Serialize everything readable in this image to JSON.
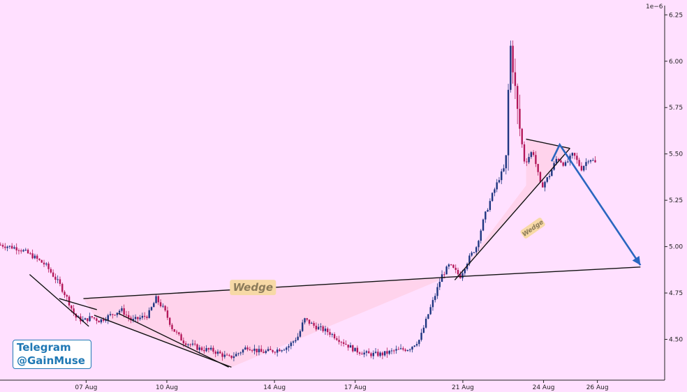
{
  "watermark": {
    "line1": "Telegram",
    "line2": "@GainMuse"
  },
  "chart_data": {
    "type": "candlestick",
    "y_multiplier_label": "1e−6",
    "x_tick_labels": [
      "07 Aug",
      "10 Aug",
      "14 Aug",
      "17 Aug",
      "21 Aug",
      "24 Aug",
      "26 Aug"
    ],
    "x_tick_days": [
      7,
      10,
      14,
      17,
      21,
      24,
      26
    ],
    "x_range_days": [
      3.8,
      28.5
    ],
    "y_tick_labels": [
      "4.50",
      "4.75",
      "5.00",
      "5.25",
      "5.50",
      "5.75",
      "6.00",
      "6.25"
    ],
    "y_ticks": [
      4.5,
      4.75,
      5.0,
      5.25,
      5.5,
      5.75,
      6.0,
      6.25
    ],
    "ylim": [
      4.28,
      6.3
    ],
    "colors": {
      "up": "#1d3580",
      "down": "#b4185a",
      "background": "#ffe0ff",
      "wedge_fill": "#ffc8dc",
      "arrow": "#2a66c0",
      "label_bg": "#f7d9a6",
      "label_text": "#8c7b5a"
    },
    "price_anchors": [
      [
        3.8,
        5.01
      ],
      [
        4.5,
        4.99
      ],
      [
        5.0,
        4.95
      ],
      [
        5.5,
        4.9
      ],
      [
        6.0,
        4.8
      ],
      [
        6.3,
        4.72
      ],
      [
        6.6,
        4.62
      ],
      [
        6.9,
        4.6
      ],
      [
        7.2,
        4.62
      ],
      [
        7.5,
        4.6
      ],
      [
        7.9,
        4.63
      ],
      [
        8.3,
        4.66
      ],
      [
        8.7,
        4.6
      ],
      [
        9.3,
        4.63
      ],
      [
        9.6,
        4.72
      ],
      [
        9.9,
        4.66
      ],
      [
        10.2,
        4.56
      ],
      [
        10.6,
        4.49
      ],
      [
        11.2,
        4.45
      ],
      [
        11.7,
        4.44
      ],
      [
        12.3,
        4.4
      ],
      [
        12.6,
        4.42
      ],
      [
        13.0,
        4.46
      ],
      [
        13.5,
        4.43
      ],
      [
        14.0,
        4.44
      ],
      [
        14.5,
        4.46
      ],
      [
        14.9,
        4.52
      ],
      [
        15.1,
        4.61
      ],
      [
        15.5,
        4.57
      ],
      [
        16.0,
        4.54
      ],
      [
        16.5,
        4.49
      ],
      [
        17.0,
        4.44
      ],
      [
        17.5,
        4.42
      ],
      [
        18.0,
        4.42
      ],
      [
        18.5,
        4.44
      ],
      [
        19.0,
        4.45
      ],
      [
        19.4,
        4.5
      ],
      [
        19.7,
        4.63
      ],
      [
        20.0,
        4.75
      ],
      [
        20.2,
        4.84
      ],
      [
        20.5,
        4.9
      ],
      [
        20.9,
        4.84
      ],
      [
        21.2,
        4.93
      ],
      [
        21.5,
        5.0
      ],
      [
        21.8,
        5.16
      ],
      [
        22.1,
        5.28
      ],
      [
        22.35,
        5.37
      ],
      [
        22.6,
        5.44
      ],
      [
        22.75,
        6.1
      ],
      [
        22.85,
        6.0
      ],
      [
        23.0,
        5.75
      ],
      [
        23.3,
        5.45
      ],
      [
        23.6,
        5.52
      ],
      [
        23.9,
        5.32
      ],
      [
        24.2,
        5.38
      ],
      [
        24.5,
        5.48
      ],
      [
        24.8,
        5.44
      ],
      [
        25.1,
        5.5
      ],
      [
        25.4,
        5.42
      ],
      [
        25.7,
        5.48
      ],
      [
        26.0,
        5.44
      ]
    ],
    "wedges": [
      {
        "label": "Wedge",
        "upper": [
          [
            6.9,
            4.72
          ],
          [
            20.4,
            4.835
          ]
        ],
        "lower": [
          [
            7.3,
            4.63
          ],
          [
            12.4,
            4.35
          ]
        ],
        "apex": [
          20.4,
          4.835
        ]
      },
      {
        "label": "Wedge",
        "upper": [
          [
            23.35,
            5.58
          ],
          [
            24.98,
            5.53
          ]
        ],
        "lower": [
          [
            20.7,
            4.82
          ],
          [
            24.98,
            5.53
          ]
        ],
        "apex": [
          24.98,
          5.53
        ]
      }
    ],
    "support_line": [
      [
        20.4,
        4.835
      ],
      [
        27.6,
        4.89
      ]
    ],
    "arrow_path": [
      [
        24.3,
        5.46
      ],
      [
        24.6,
        5.55
      ],
      [
        27.6,
        4.9
      ]
    ],
    "extra_trend_lines": [
      [
        [
          4.9,
          4.85
        ],
        [
          7.1,
          4.57
        ]
      ],
      [
        [
          6.0,
          4.72
        ],
        [
          7.4,
          4.66
        ]
      ],
      [
        [
          8.2,
          4.64
        ],
        [
          12.3,
          4.35
        ]
      ]
    ],
    "annotations": [
      {
        "text": "Wedge",
        "at": [
          13.2,
          4.78
        ],
        "rotation": 0
      },
      {
        "text": "Wedge",
        "at": [
          23.6,
          5.1
        ],
        "rotation": -35
      }
    ]
  }
}
